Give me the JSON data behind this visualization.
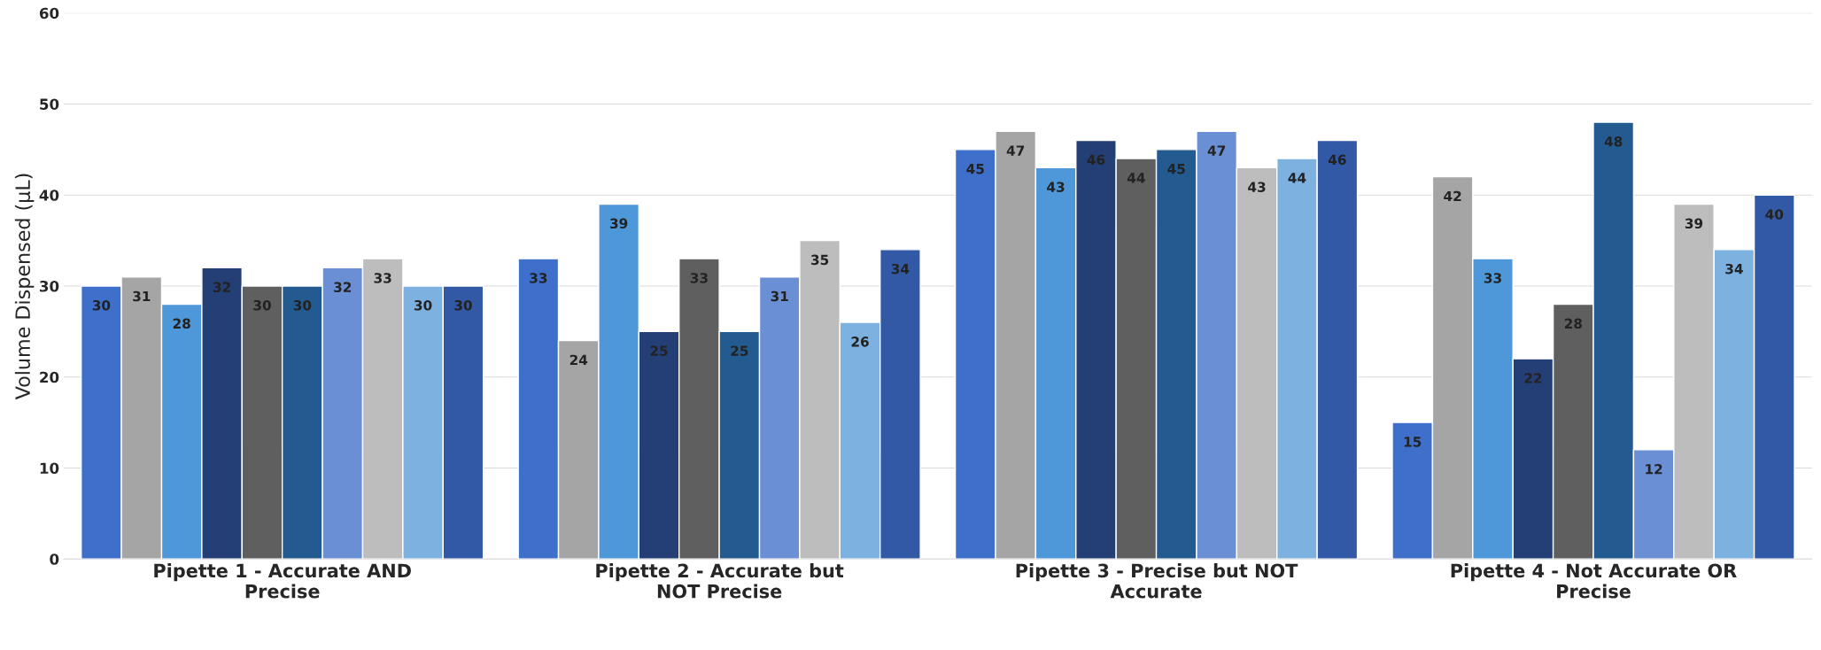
{
  "chart_data": {
    "type": "bar",
    "ylabel": "Volume Dispensed (μL)",
    "categories": [
      "Pipette 1 - Accurate AND\nPrecise",
      "Pipette 2 - Accurate but\nNOT Precise",
      "Pipette 3 - Precise but NOT\nAccurate",
      "Pipette 4 - Not Accurate OR\nPrecise"
    ],
    "series": [
      {
        "color": "#3d6fcb",
        "values": [
          30,
          33,
          45,
          15
        ]
      },
      {
        "color": "#a5a5a5",
        "values": [
          31,
          24,
          47,
          42
        ]
      },
      {
        "color": "#4e97d8",
        "values": [
          28,
          39,
          43,
          33
        ]
      },
      {
        "color": "#243f76",
        "values": [
          32,
          25,
          46,
          22
        ]
      },
      {
        "color": "#5f5f5f",
        "values": [
          30,
          33,
          44,
          28
        ]
      },
      {
        "color": "#235a90",
        "values": [
          30,
          25,
          45,
          48
        ]
      },
      {
        "color": "#6a8fd4",
        "values": [
          32,
          31,
          47,
          12
        ]
      },
      {
        "color": "#bdbdbd",
        "values": [
          33,
          35,
          43,
          39
        ]
      },
      {
        "color": "#7db1e0",
        "values": [
          30,
          26,
          44,
          34
        ]
      },
      {
        "color": "#3159a6",
        "values": [
          30,
          34,
          46,
          40
        ]
      }
    ],
    "ylim": [
      0,
      60
    ],
    "yticks": [
      0,
      10,
      20,
      30,
      40,
      50,
      60
    ],
    "grid": "y",
    "data_labels": true
  }
}
